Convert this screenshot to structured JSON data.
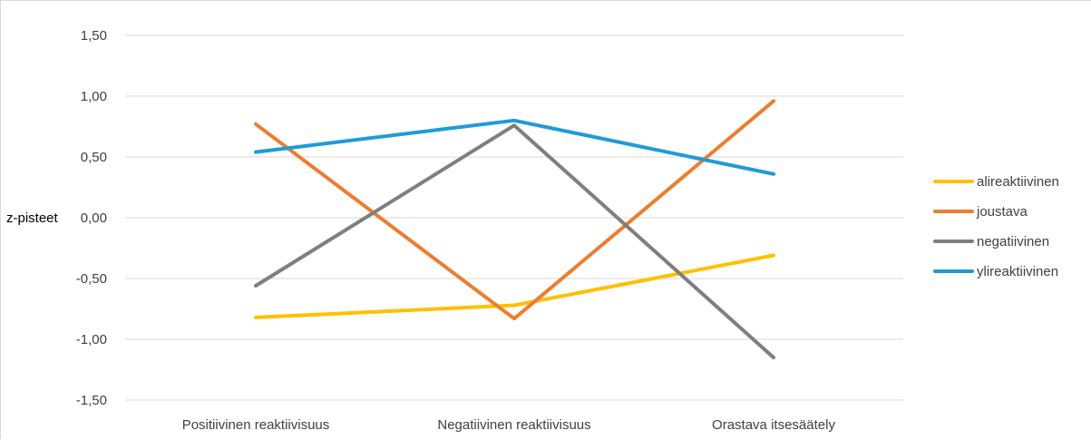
{
  "chart_data": {
    "type": "line",
    "title": "",
    "ylabel": "z-pisteet",
    "xlabel": "",
    "categories": [
      "Positiivinen reaktiivisuus",
      "Negatiivinen reaktiivisuus",
      "Orastava itsesäätely"
    ],
    "yticks": [
      "1,50",
      "1,00",
      "0,50",
      "0,00",
      "-0,50",
      "-1,00",
      "-1,50"
    ],
    "ytick_values": [
      1.5,
      1.0,
      0.5,
      0.0,
      -0.5,
      -1.0,
      -1.5
    ],
    "ylim": [
      -1.5,
      1.5
    ],
    "grid": true,
    "legend_position": "right",
    "series": [
      {
        "name": "alireaktiivinen",
        "color": "#FFC000",
        "values": [
          -0.82,
          -0.72,
          -0.31
        ]
      },
      {
        "name": "joustava",
        "color": "#ED7D31",
        "values": [
          0.77,
          -0.83,
          0.96
        ]
      },
      {
        "name": "negatiivinen",
        "color": "#7F7F7F",
        "values": [
          -0.56,
          0.76,
          -1.15
        ]
      },
      {
        "name": "ylireaktiivinen",
        "color": "#1F9BD7",
        "values": [
          0.54,
          0.8,
          0.36
        ]
      }
    ]
  }
}
